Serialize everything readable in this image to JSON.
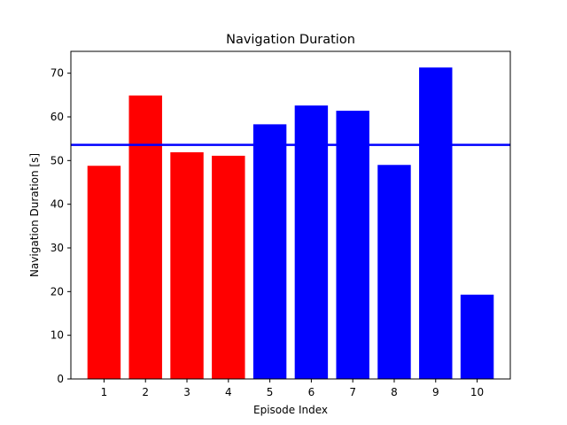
{
  "chart_data": {
    "type": "bar",
    "title": "Navigation Duration",
    "xlabel": "Episode Index",
    "ylabel": "Navigation Duration [s]",
    "categories": [
      "1",
      "2",
      "3",
      "4",
      "5",
      "6",
      "7",
      "8",
      "9",
      "10"
    ],
    "values": [
      48.8,
      64.9,
      51.9,
      51.1,
      58.3,
      62.6,
      61.4,
      49.0,
      71.3,
      19.3
    ],
    "bar_colors": [
      "#ff0000",
      "#ff0000",
      "#ff0000",
      "#ff0000",
      "#0000ff",
      "#0000ff",
      "#0000ff",
      "#0000ff",
      "#0000ff",
      "#0000ff"
    ],
    "ylim": [
      0,
      75
    ],
    "yticks": [
      0,
      10,
      20,
      30,
      40,
      50,
      60,
      70
    ],
    "reference_line": {
      "value": 53.6,
      "color": "#0000ff"
    },
    "grid": false,
    "legend": "none"
  }
}
